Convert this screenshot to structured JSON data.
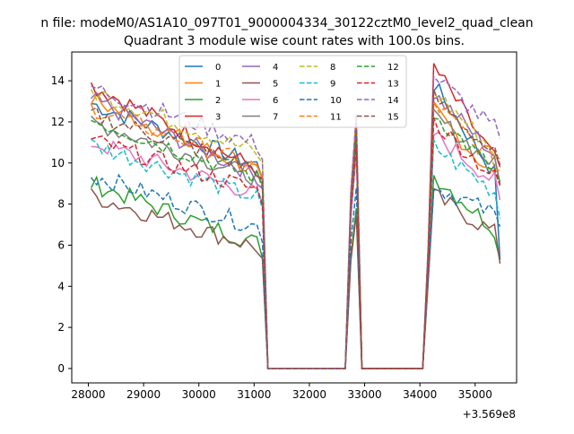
{
  "figure": {
    "suptitle": "n file: modeM0/AS1A10_097T01_9000004334_30122cztM0_level2_quad_clean",
    "title": "Quadrant 3 module wise count rates with 100.0s bins."
  },
  "chart_data": {
    "type": "line",
    "title": "Quadrant 3 module wise count rates with 100.0s bins.",
    "xlabel": "",
    "ylabel": "",
    "x_offset_label": "+3.569e8",
    "xlim": [
      27700,
      35750
    ],
    "ylim": [
      -0.7,
      15.4
    ],
    "xticks": [
      28000,
      29000,
      30000,
      31000,
      32000,
      33000,
      34000,
      35000
    ],
    "yticks": [
      0,
      2,
      4,
      6,
      8,
      10,
      12,
      14
    ],
    "legend": {
      "placement": "top-center",
      "columns": 4
    },
    "segments": {
      "x_seg1_start": 28050,
      "x_seg1_end": 31050,
      "x_drop": 31250,
      "x_gap_end": 32650,
      "x_spike": [
        32750,
        32850,
        32950
      ],
      "x_gap2_end": 34050,
      "x_seg2_start": 34250,
      "x_seg2_end": 35450
    },
    "series": [
      {
        "name": "0",
        "color": "#1f77b4",
        "dash": "solid",
        "seg1_start": 12.9,
        "seg1_end": 9.9,
        "spike": 11.6,
        "seg2_start": 13.8,
        "seg2_end": 9.5,
        "seg2_last": 5.3,
        "pre_seg2": 5.5
      },
      {
        "name": "1",
        "color": "#ff7f0e",
        "dash": "solid",
        "seg1_start": 13.1,
        "seg1_end": 9.6,
        "spike": 11.0,
        "seg2_start": 12.6,
        "seg2_end": 9.3,
        "seg2_last": 9.1,
        "pre_seg2": 5.0
      },
      {
        "name": "2",
        "color": "#2ca02c",
        "dash": "solid",
        "seg1_start": 9.0,
        "seg1_end": 6.1,
        "spike": 7.8,
        "seg2_start": 9.4,
        "seg2_end": 6.8,
        "seg2_last": 5.3,
        "pre_seg2": 4.5
      },
      {
        "name": "3",
        "color": "#d62728",
        "dash": "solid",
        "seg1_start": 13.8,
        "seg1_end": 9.7,
        "spike": 11.7,
        "seg2_start": 14.7,
        "seg2_end": 10.2,
        "seg2_last": 9.8,
        "pre_seg2": 5.8
      },
      {
        "name": "4",
        "color": "#9467bd",
        "dash": "solid",
        "seg1_start": 13.1,
        "seg1_end": 9.4,
        "spike": 11.3,
        "seg2_start": 13.4,
        "seg2_end": 10.4,
        "seg2_last": 9.0,
        "pre_seg2": 5.2
      },
      {
        "name": "5",
        "color": "#8c564b",
        "dash": "solid",
        "seg1_start": 8.4,
        "seg1_end": 5.9,
        "spike": 7.5,
        "seg2_start": 8.4,
        "seg2_end": 6.6,
        "seg2_last": 5.1,
        "pre_seg2": 4.2
      },
      {
        "name": "6",
        "color": "#e377c2",
        "dash": "solid",
        "seg1_start": 11.0,
        "seg1_end": 8.5,
        "spike": 10.5,
        "seg2_start": 11.4,
        "seg2_end": 9.1,
        "seg2_last": 8.2,
        "pre_seg2": 4.8
      },
      {
        "name": "7",
        "color": "#7f7f7f",
        "dash": "solid",
        "seg1_start": 12.0,
        "seg1_end": 9.3,
        "spike": 11.1,
        "seg2_start": 12.3,
        "seg2_end": 9.9,
        "seg2_last": 9.0,
        "pre_seg2": 5.1
      },
      {
        "name": "8",
        "color": "#bcbd22",
        "dash": "dashed",
        "seg1_start": 13.5,
        "seg1_end": 10.5,
        "spike": 12.0,
        "seg2_start": 13.5,
        "seg2_end": 10.6,
        "seg2_last": 10.2,
        "pre_seg2": 5.6
      },
      {
        "name": "9",
        "color": "#17becf",
        "dash": "dashed",
        "seg1_start": 10.9,
        "seg1_end": 8.3,
        "spike": 10.8,
        "seg2_start": 10.8,
        "seg2_end": 8.6,
        "seg2_last": 7.3,
        "pre_seg2": 4.9
      },
      {
        "name": "10",
        "color": "#1f77b4",
        "dash": "dashed",
        "seg1_start": 9.4,
        "seg1_end": 6.9,
        "spike": 8.8,
        "seg2_start": 8.9,
        "seg2_end": 7.5,
        "seg2_last": 6.9,
        "pre_seg2": 4.4
      },
      {
        "name": "11",
        "color": "#ff7f0e",
        "dash": "dashed",
        "seg1_start": 12.7,
        "seg1_end": 9.8,
        "spike": 12.3,
        "seg2_start": 12.9,
        "seg2_end": 10.1,
        "seg2_last": 9.6,
        "pre_seg2": 5.4
      },
      {
        "name": "12",
        "color": "#2ca02c",
        "dash": "dashed",
        "seg1_start": 12.1,
        "seg1_end": 9.3,
        "spike": 11.4,
        "seg2_start": 12.4,
        "seg2_end": 9.6,
        "seg2_last": 9.1,
        "pre_seg2": 5.2
      },
      {
        "name": "13",
        "color": "#d62728",
        "dash": "dashed",
        "seg1_start": 11.1,
        "seg1_end": 8.7,
        "spike": 10.9,
        "seg2_start": 12.0,
        "seg2_end": 9.3,
        "seg2_last": 8.9,
        "pre_seg2": 5.0
      },
      {
        "name": "14",
        "color": "#9467bd",
        "dash": "dashed",
        "seg1_start": 13.7,
        "seg1_end": 10.9,
        "spike": 12.4,
        "seg2_start": 14.2,
        "seg2_end": 11.7,
        "seg2_last": 11.2,
        "pre_seg2": 6.0
      },
      {
        "name": "15",
        "color": "#8c564b",
        "dash": "dashed",
        "seg1_start": 12.4,
        "seg1_end": 9.7,
        "spike": 11.6,
        "seg2_start": 13.2,
        "seg2_end": 10.4,
        "seg2_last": 9.9,
        "pre_seg2": 5.6
      }
    ]
  }
}
